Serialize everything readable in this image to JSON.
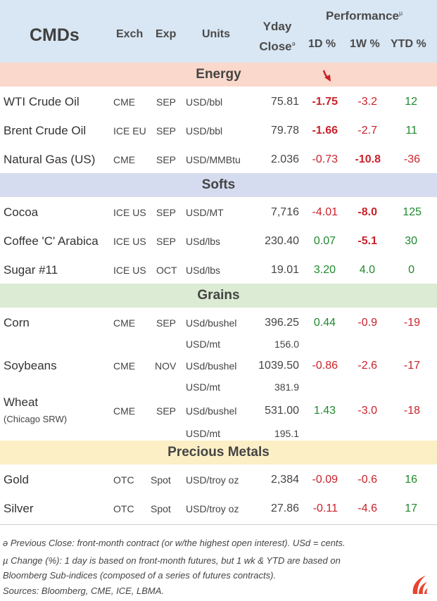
{
  "header": {
    "title": "CMDs",
    "exch": "Exch",
    "exp": "Exp",
    "units": "Units",
    "yday_line1": "Yday",
    "yday_line2": "Close",
    "yday_mark": "ə",
    "performance": "Performance",
    "performance_mark": "µ",
    "d1": "1D %",
    "w1": "1W %",
    "ytd": "YTD %"
  },
  "sections": {
    "energy": "Energy",
    "softs": "Softs",
    "grains": "Grains",
    "metals": "Precious Metals"
  },
  "colors": {
    "header_bg": "#d9e6f3",
    "energy_bg": "#fad9cc",
    "softs_bg": "#d6dcef",
    "grains_bg": "#dcebd3",
    "metals_bg": "#fcefc6",
    "positive": "#1f8a2e",
    "negative": "#c9222a"
  },
  "rows": {
    "wti": {
      "name": "WTI Crude Oil",
      "exch": "CME",
      "exp": "SEP",
      "units": "USD/bbl",
      "close": "75.81",
      "d1": "-1.75",
      "w1": "-3.2",
      "ytd": "12"
    },
    "brent": {
      "name": "Brent Crude Oil",
      "exch": "ICE EU",
      "exp": "SEP",
      "units": "USD/bbl",
      "close": "79.78",
      "d1": "-1.66",
      "w1": "-2.7",
      "ytd": "11"
    },
    "natgas": {
      "name": "Natural Gas (US)",
      "exch": "CME",
      "exp": "SEP",
      "units": "USD/MMBtu",
      "close": "2.036",
      "d1": "-0.73",
      "w1": "-10.8",
      "ytd": "-36"
    },
    "cocoa": {
      "name": "Cocoa",
      "exch": "ICE US",
      "exp": "SEP",
      "units": "USD/MT",
      "close": "7,716",
      "d1": "-4.01",
      "w1": "-8.0",
      "ytd": "125"
    },
    "coffee": {
      "name": "Coffee 'C' Arabica",
      "exch": "ICE US",
      "exp": "SEP",
      "units": "USd/lbs",
      "close": "230.40",
      "d1": "0.07",
      "w1": "-5.1",
      "ytd": "30"
    },
    "sugar": {
      "name": "Sugar #11",
      "exch": "ICE US",
      "exp": "OCT",
      "units": "USd/lbs",
      "close": "19.01",
      "d1": "3.20",
      "w1": "4.0",
      "ytd": "0"
    },
    "corn": {
      "name": "Corn",
      "exch": "CME",
      "exp": "SEP",
      "units": "USd/bushel",
      "close": "396.25",
      "d1": "0.44",
      "w1": "-0.9",
      "ytd": "-19",
      "units2": "USD/mt",
      "close2": "156.0"
    },
    "soy": {
      "name": "Soybeans",
      "exch": "CME",
      "exp": "NOV",
      "units": "USd/bushel",
      "close": "1039.50",
      "d1": "-0.86",
      "w1": "-2.6",
      "ytd": "-17",
      "units2": "USD/mt",
      "close2": "381.9"
    },
    "wheat": {
      "name": "Wheat",
      "sub": "(Chicago SRW)",
      "exch": "CME",
      "exp": "SEP",
      "units": "USd/bushel",
      "close": "531.00",
      "d1": "1.43",
      "w1": "-3.0",
      "ytd": "-18",
      "units2": "USD/mt",
      "close2": "195.1"
    },
    "gold": {
      "name": "Gold",
      "exch": "OTC",
      "exp": "Spot",
      "units": "USD/troy oz",
      "close": "2,384",
      "d1": "-0.09",
      "w1": "-0.6",
      "ytd": "16"
    },
    "silver": {
      "name": "Silver",
      "exch": "OTC",
      "exp": "Spot",
      "units": "USD/troy oz",
      "close": "27.86",
      "d1": "-0.11",
      "w1": "-4.6",
      "ytd": "17"
    }
  },
  "notes": {
    "n1": "ə Previous Close: front-month contract (or w/the highest open interest). USd = cents.",
    "n2": "µ  Change (%): 1 day is based on front-month futures, but 1 wk & YTD are based on",
    "n3": "Bloomberg Sub-indices (composed of a series of futures contracts).",
    "n4": "Sources: Bloomberg, CME, ICE, LBMA."
  },
  "icons": {
    "arrow": "red-down-arrow-icon",
    "logo": "flame-logo-icon"
  }
}
